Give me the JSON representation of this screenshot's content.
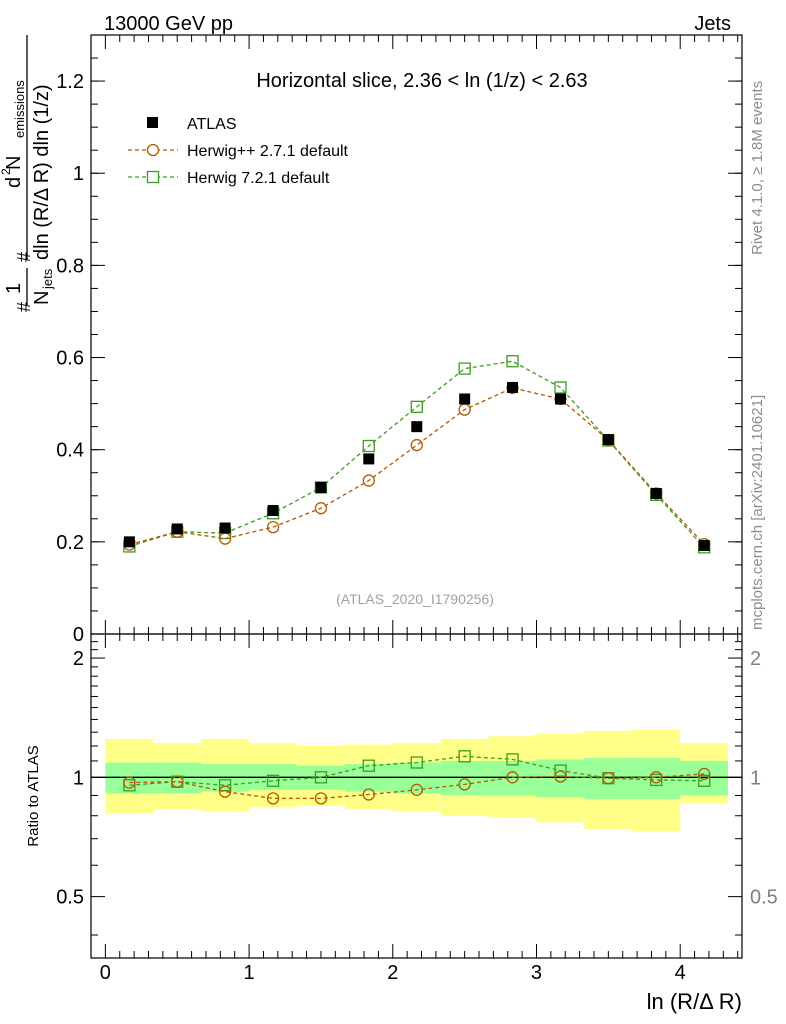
{
  "header": {
    "left": "13000 GeV pp",
    "right": "Jets"
  },
  "side_labels": {
    "rivet": "Rivet 4.1.0, ≥ 1.8M events",
    "mcplots": "mcplots.cern.ch [arXiv:2401.10621]"
  },
  "chart_data": [
    {
      "type": "scatter",
      "panel": "main",
      "title": "Horizontal slice, 2.36 < ln (1/z) < 2.63",
      "watermark": "(ATLAS_2020_I1790256)",
      "xlabel": "ln (R/Δ R)",
      "ylabel_parts": {
        "frac1_num": "1",
        "frac1_den": "N",
        "frac1_den_sub": "jets",
        "frac2_num": "d",
        "frac2_num_sup": "2",
        "frac2_num_rest": " N",
        "frac2_num_sub": "emissions",
        "frac2_den": "dln (R/Δ R) dln (1/z)",
        "hash": "#"
      },
      "xlim": [
        -0.1,
        4.43
      ],
      "ylim": [
        0,
        1.3
      ],
      "y_ticks": [
        {
          "value": 0,
          "label": "0"
        },
        {
          "value": 0.2,
          "label": "0.2"
        },
        {
          "value": 0.4,
          "label": "0.4"
        },
        {
          "value": 0.6,
          "label": "0.6"
        },
        {
          "value": 0.8,
          "label": "0.8"
        },
        {
          "value": 1.0,
          "label": "1"
        },
        {
          "value": 1.2,
          "label": "1.2"
        }
      ],
      "x": [
        0.167,
        0.5,
        0.833,
        1.167,
        1.5,
        1.833,
        2.167,
        2.5,
        2.833,
        3.167,
        3.5,
        3.833,
        4.167
      ],
      "series": [
        {
          "name": "ATLAS",
          "marker": "filled-square",
          "color": "#000000",
          "values": [
            0.2,
            0.228,
            0.23,
            0.268,
            0.318,
            0.38,
            0.45,
            0.51,
            0.535,
            0.51,
            0.422,
            0.305,
            0.192
          ]
        },
        {
          "name": "Herwig++ 2.7.1 default",
          "marker": "open-circle",
          "color": "#b35900",
          "values": [
            0.194,
            0.222,
            0.207,
            0.232,
            0.273,
            0.333,
            0.41,
            0.487,
            0.534,
            0.51,
            0.421,
            0.305,
            0.195
          ]
        },
        {
          "name": "Herwig 7.2.1 default",
          "marker": "open-square",
          "color": "#3a9e1e",
          "values": [
            0.19,
            0.222,
            0.219,
            0.262,
            0.318,
            0.408,
            0.493,
            0.576,
            0.592,
            0.535,
            0.42,
            0.302,
            0.188
          ]
        }
      ]
    },
    {
      "type": "scatter",
      "panel": "ratio",
      "ylabel": "Ratio to ATLAS",
      "xlabel": "ln (R/Δ R)",
      "xlim": [
        -0.1,
        4.43
      ],
      "ylim": [
        0.35,
        2.3
      ],
      "x_ticks": [
        {
          "value": 0,
          "label": "0"
        },
        {
          "value": 1,
          "label": "1"
        },
        {
          "value": 2,
          "label": "2"
        },
        {
          "value": 3,
          "label": "3"
        },
        {
          "value": 4,
          "label": "4"
        }
      ],
      "y_ticks": [
        {
          "value": 0.5,
          "label": "0.5"
        },
        {
          "value": 1,
          "label": "1"
        },
        {
          "value": 2,
          "label": "2"
        }
      ],
      "bin_edges": [
        0,
        0.333,
        0.667,
        1.0,
        1.333,
        1.667,
        2.0,
        2.333,
        2.667,
        3.0,
        3.333,
        3.667,
        4.0,
        4.333
      ],
      "band_inner": [
        [
          0.91,
          1.09
        ],
        [
          0.91,
          1.09
        ],
        [
          0.92,
          1.08
        ],
        [
          0.93,
          1.08
        ],
        [
          0.93,
          1.07
        ],
        [
          0.92,
          1.08
        ],
        [
          0.91,
          1.09
        ],
        [
          0.9,
          1.1
        ],
        [
          0.9,
          1.1
        ],
        [
          0.89,
          1.11
        ],
        [
          0.88,
          1.12
        ],
        [
          0.88,
          1.12
        ],
        [
          0.9,
          1.1
        ]
      ],
      "band_outer": [
        [
          0.81,
          1.25
        ],
        [
          0.83,
          1.22
        ],
        [
          0.82,
          1.25
        ],
        [
          0.84,
          1.22
        ],
        [
          0.85,
          1.2
        ],
        [
          0.83,
          1.21
        ],
        [
          0.82,
          1.22
        ],
        [
          0.8,
          1.25
        ],
        [
          0.79,
          1.27
        ],
        [
          0.77,
          1.29
        ],
        [
          0.74,
          1.31
        ],
        [
          0.73,
          1.32
        ],
        [
          0.86,
          1.22
        ]
      ],
      "series": [
        {
          "name": "Herwig++ 2.7.1 default",
          "color": "#b35900",
          "marker": "open-circle",
          "values": [
            0.97,
            0.975,
            0.92,
            0.885,
            0.885,
            0.905,
            0.93,
            0.96,
            1.0,
            1.005,
            0.995,
            1.0,
            1.02
          ]
        },
        {
          "name": "Herwig 7.2.1 default",
          "color": "#3a9e1e",
          "marker": "open-square",
          "values": [
            0.955,
            0.975,
            0.955,
            0.98,
            1.0,
            1.07,
            1.09,
            1.13,
            1.11,
            1.04,
            0.995,
            0.985,
            0.98
          ]
        }
      ]
    }
  ]
}
